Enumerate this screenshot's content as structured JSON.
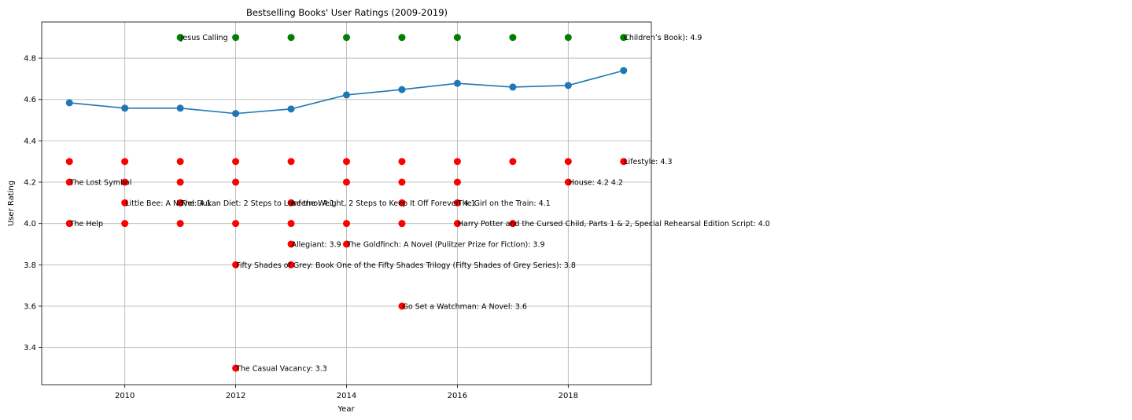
{
  "chart_data": {
    "type": "scatter",
    "title": "Bestselling Books' User Ratings (2009-2019)",
    "xlabel": "Year",
    "ylabel": "User Rating",
    "xlim": [
      2008.5,
      2019.5
    ],
    "ylim": [
      3.22,
      4.975
    ],
    "x_ticks": [
      2010,
      2012,
      2014,
      2016,
      2018
    ],
    "y_ticks": [
      3.4,
      3.6,
      3.8,
      4.0,
      4.2,
      4.4,
      4.6,
      4.8
    ],
    "grid": true,
    "colors": {
      "line": "#1f77b4",
      "high": "#008000",
      "low": "#ff0000"
    },
    "series": [
      {
        "kind": "line",
        "x": [
          2009,
          2010,
          2011,
          2012,
          2013,
          2014,
          2015,
          2016,
          2017,
          2018,
          2019
        ],
        "values": [
          4.584,
          4.558,
          4.558,
          4.532,
          4.554,
          4.622,
          4.648,
          4.678,
          4.66,
          4.668,
          4.74
        ]
      },
      {
        "kind": "points",
        "color": "high",
        "x": [
          2011,
          2012,
          2013,
          2014,
          2015,
          2016,
          2017,
          2018,
          2019
        ],
        "values": [
          4.9,
          4.9,
          4.9,
          4.9,
          4.9,
          4.9,
          4.9,
          4.9,
          4.9
        ]
      },
      {
        "kind": "points",
        "color": "low",
        "x": [
          2009,
          2010,
          2011,
          2012,
          2013,
          2014,
          2015,
          2016,
          2017,
          2018,
          2019,
          2009,
          2010,
          2011,
          2012,
          2014,
          2015,
          2016,
          2018,
          2010,
          2011,
          2013,
          2015,
          2016,
          2009,
          2010,
          2011,
          2012,
          2013,
          2014,
          2015,
          2016,
          2017,
          2013,
          2014,
          2012,
          2013,
          2015,
          2012
        ],
        "values": [
          4.3,
          4.3,
          4.3,
          4.3,
          4.3,
          4.3,
          4.3,
          4.3,
          4.3,
          4.3,
          4.3,
          4.2,
          4.2,
          4.2,
          4.2,
          4.2,
          4.2,
          4.2,
          4.2,
          4.1,
          4.1,
          4.1,
          4.1,
          4.1,
          4.0,
          4.0,
          4.0,
          4.0,
          4.0,
          4.0,
          4.0,
          4.0,
          4.0,
          3.9,
          3.9,
          3.8,
          3.8,
          3.6,
          3.3
        ]
      }
    ],
    "annotations": [
      {
        "x": 2011,
        "y": 4.9,
        "text": "Jesus Calling"
      },
      {
        "x": 2019,
        "y": 4.9,
        "text": "Children’s Book): 4.9"
      },
      {
        "x": 2019,
        "y": 4.3,
        "text": "Lifestyle: 4.3"
      },
      {
        "x": 2018,
        "y": 4.2,
        "text": "House: 4.2 4.2"
      },
      {
        "x": 2009,
        "y": 4.2,
        "text": "The Lost Symbol"
      },
      {
        "x": 2010,
        "y": 4.1,
        "text": "Little Bee: A Novel: 4.1"
      },
      {
        "x": 2011,
        "y": 4.1,
        "text": "The Dukan Diet: 2 Steps to Lose the Weight, 2 Steps to Keep It Off Forever: 4.1"
      },
      {
        "x": 2013,
        "y": 4.1,
        "text": "Inferno: 4.1"
      },
      {
        "x": 2016,
        "y": 4.1,
        "text": "The Girl on the Train: 4.1"
      },
      {
        "x": 2009,
        "y": 4.0,
        "text": "The Help"
      },
      {
        "x": 2016,
        "y": 4.0,
        "text": "Harry Potter and the Cursed Child, Parts 1 & 2, Special Rehearsal Edition Script: 4.0"
      },
      {
        "x": 2013,
        "y": 3.9,
        "text": "Allegiant: 3.9"
      },
      {
        "x": 2014,
        "y": 3.9,
        "text": "The Goldfinch: A Novel (Pulitzer Prize for Fiction): 3.9"
      },
      {
        "x": 2012,
        "y": 3.8,
        "text": "Fifty Shades of Grey: Book One of the Fifty Shades Trilogy (Fifty Shades of Grey Series): 3.8"
      },
      {
        "x": 2015,
        "y": 3.6,
        "text": "Go Set a Watchman: A Novel: 3.6"
      },
      {
        "x": 2012,
        "y": 3.3,
        "text": "The Casual Vacancy: 3.3"
      }
    ]
  }
}
